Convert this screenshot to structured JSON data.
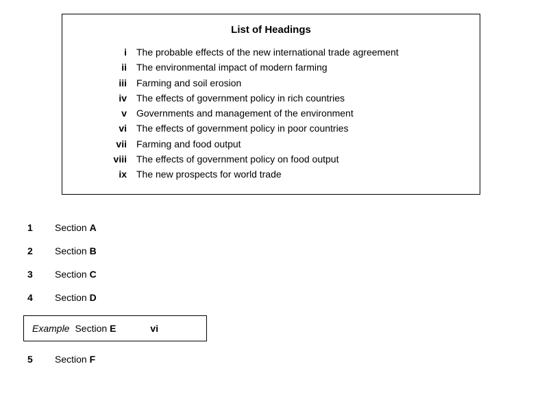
{
  "headings_box": {
    "title": "List of Headings",
    "items": [
      {
        "roman": "i",
        "text": "The probable effects of the new international trade agreement"
      },
      {
        "roman": "ii",
        "text": "The environmental impact of modern farming"
      },
      {
        "roman": "iii",
        "text": "Farming and soil erosion"
      },
      {
        "roman": "iv",
        "text": "The effects of government policy in rich countries"
      },
      {
        "roman": "v",
        "text": "Governments and management of the environment"
      },
      {
        "roman": "vi",
        "text": "The effects of government policy in poor countries"
      },
      {
        "roman": "vii",
        "text": "Farming and food output"
      },
      {
        "roman": "viii",
        "text": "The effects of government policy on food output"
      },
      {
        "roman": "ix",
        "text": "The new prospects for world trade"
      }
    ]
  },
  "questions": [
    {
      "num": "1",
      "label": "Section ",
      "letter": "A"
    },
    {
      "num": "2",
      "label": "Section ",
      "letter": "B"
    },
    {
      "num": "3",
      "label": "Section ",
      "letter": "C"
    },
    {
      "num": "4",
      "label": "Section ",
      "letter": "D"
    }
  ],
  "example": {
    "prefix": "Example",
    "label": "  Section ",
    "letter": "E",
    "answer": "vi"
  },
  "questions_after": [
    {
      "num": "5",
      "label": "Section ",
      "letter": "F"
    }
  ]
}
